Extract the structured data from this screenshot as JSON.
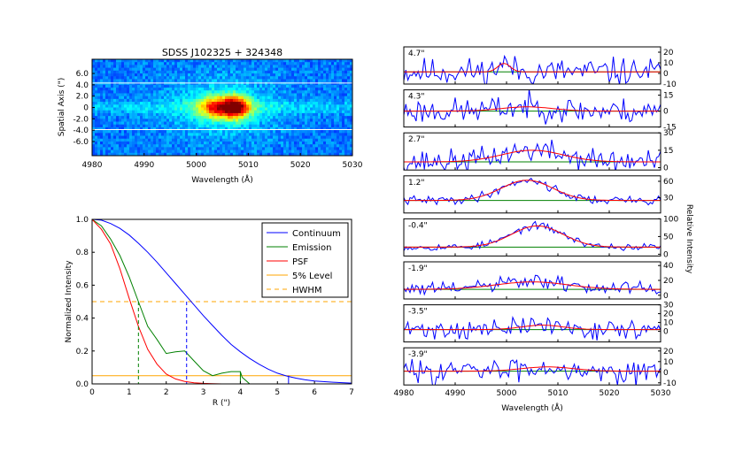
{
  "chart_data": [
    {
      "type": "heatmap",
      "title": "SDSS J102325 + 324348",
      "xlabel": "Wavelength (Å)",
      "ylabel": "Spatial Axis (\")",
      "xlim": [
        4980,
        5030
      ],
      "ylim": [
        -8.5,
        8.5
      ],
      "x_ticks": [
        "4980",
        "4990",
        "5000",
        "5010",
        "5020",
        "5030"
      ],
      "y_ticks": [
        "6.0",
        "4.0",
        "2.0",
        "0",
        "-2.0",
        "-4.0",
        "-6.0"
      ],
      "y_tick_values": [
        6,
        4,
        2,
        0,
        -2,
        -4,
        -6
      ],
      "x_tick_values": [
        4980,
        4990,
        5000,
        5010,
        5020,
        5030
      ],
      "white_lines_y": [
        4.3,
        -3.9
      ],
      "emission_center_x": 5005,
      "emission_width_x": 3,
      "colormap": "jet"
    },
    {
      "type": "line",
      "xlabel": "R (\")",
      "ylabel": "Normalized Intensity",
      "xlim": [
        0,
        7
      ],
      "ylim": [
        0,
        1.0
      ],
      "x_ticks": [
        "0",
        "1",
        "2",
        "3",
        "4",
        "5",
        "6",
        "7"
      ],
      "x_tick_values": [
        0,
        1,
        2,
        3,
        4,
        5,
        6,
        7
      ],
      "y_ticks": [
        "0.0",
        "0.2",
        "0.4",
        "0.6",
        "0.8",
        "1.0"
      ],
      "y_tick_values": [
        0.0,
        0.2,
        0.4,
        0.6,
        0.8,
        1.0
      ],
      "legend_position": "top-right",
      "series": [
        {
          "name": "Continuum",
          "color": "#0000ff",
          "style": "solid",
          "x": [
            0,
            0.25,
            0.5,
            0.75,
            1.0,
            1.25,
            1.5,
            1.75,
            2.0,
            2.25,
            2.5,
            2.75,
            3.0,
            3.25,
            3.5,
            3.75,
            4.0,
            4.25,
            4.5,
            4.75,
            5.0,
            5.25,
            5.5,
            5.75,
            6.0,
            6.5,
            7.0
          ],
          "y": [
            1.0,
            0.995,
            0.975,
            0.945,
            0.905,
            0.855,
            0.8,
            0.74,
            0.675,
            0.61,
            0.545,
            0.48,
            0.415,
            0.355,
            0.295,
            0.24,
            0.195,
            0.155,
            0.12,
            0.09,
            0.065,
            0.048,
            0.035,
            0.025,
            0.018,
            0.01,
            0.005
          ]
        },
        {
          "name": "Emission",
          "color": "#008000",
          "style": "solid",
          "x": [
            0,
            0.25,
            0.5,
            0.75,
            1.0,
            1.25,
            1.5,
            1.75,
            2.0,
            2.25,
            2.5,
            2.75,
            3.0,
            3.25,
            3.5,
            3.75,
            4.0,
            4.05,
            4.1,
            4.25
          ],
          "y": [
            1.0,
            0.96,
            0.88,
            0.78,
            0.65,
            0.5,
            0.35,
            0.27,
            0.185,
            0.195,
            0.2,
            0.14,
            0.08,
            0.05,
            0.065,
            0.075,
            0.075,
            0.04,
            0.03,
            0.0
          ]
        },
        {
          "name": "PSF",
          "color": "#ff0000",
          "style": "solid",
          "x": [
            0,
            0.25,
            0.5,
            0.75,
            1.0,
            1.25,
            1.5,
            1.75,
            2.0,
            2.25,
            2.5,
            2.75,
            3.0,
            3.25,
            3.5
          ],
          "y": [
            1.0,
            0.94,
            0.85,
            0.7,
            0.52,
            0.35,
            0.21,
            0.12,
            0.06,
            0.03,
            0.015,
            0.007,
            0.003,
            0.001,
            0.0
          ]
        },
        {
          "name": "5% Level",
          "color": "#ffa500",
          "style": "solid",
          "x": [
            0,
            7
          ],
          "y": [
            0.05,
            0.05
          ]
        },
        {
          "name": "HWHM",
          "color": "#ffa500",
          "style": "dashed",
          "x": [
            0,
            7
          ],
          "y": [
            0.5,
            0.5
          ]
        }
      ],
      "markers": [
        {
          "x": 1.25,
          "y": 0.5,
          "color": "#008000",
          "style": "dashed"
        },
        {
          "x": 2.55,
          "y": 0.5,
          "color": "#0000ff",
          "style": "dashed"
        },
        {
          "x": 4.0,
          "y": 0.075,
          "color": "#008000",
          "style": "solid"
        },
        {
          "x": 5.3,
          "y": 0.05,
          "color": "#0000ff",
          "style": "solid"
        }
      ]
    },
    {
      "type": "line",
      "xlabel": "Wavelength (Å)",
      "ylabel": "Relative Intensity",
      "xlim": [
        4980,
        5030
      ],
      "x_ticks": [
        "4980",
        "4990",
        "5000",
        "5010",
        "5020",
        "5030"
      ],
      "x_tick_values": [
        4980,
        4990,
        5000,
        5010,
        5020,
        5030
      ],
      "panels": [
        {
          "label": "4.7\"",
          "ylim": [
            -10,
            25
          ],
          "y_ticks": [
            "20",
            "10",
            "0",
            "-10"
          ],
          "y_tick_values": [
            20,
            10,
            0,
            -10
          ],
          "baseline": [
            1.5,
            0
          ],
          "gauss": {
            "amp": 8,
            "center": 4999.5,
            "sigma": 1.2
          },
          "noise": 6.5,
          "seed": 11
        },
        {
          "label": "4.3\"",
          "ylim": [
            -15,
            20
          ],
          "y_ticks": [
            "15",
            "0",
            "-15"
          ],
          "y_tick_values": [
            15,
            0,
            -15
          ],
          "baseline": [
            0,
            0
          ],
          "gauss": {
            "amp": 4,
            "center": 5004,
            "sigma": 5
          },
          "noise": 6,
          "seed": 23
        },
        {
          "label": "2.7\"",
          "ylim": [
            -2,
            30
          ],
          "y_ticks": [
            "30",
            "15",
            "0"
          ],
          "y_tick_values": [
            30,
            15,
            0
          ],
          "baseline": [
            5,
            0
          ],
          "gauss": {
            "amp": 10,
            "center": 5005,
            "sigma": 6
          },
          "noise": 5,
          "seed": 37
        },
        {
          "label": "1.2\"",
          "ylim": [
            2,
            70
          ],
          "y_ticks": [
            "60",
            "30"
          ],
          "y_tick_values": [
            60,
            30
          ],
          "baseline": [
            25,
            0
          ],
          "gauss": {
            "amp": 37,
            "center": 5004,
            "sigma": 5
          },
          "noise": 4,
          "seed": 41
        },
        {
          "label": "-0.4\"",
          "ylim": [
            -5,
            100
          ],
          "y_ticks": [
            "100",
            "50",
            "0"
          ],
          "y_tick_values": [
            100,
            50,
            0
          ],
          "baseline": [
            20,
            0
          ],
          "gauss": {
            "amp": 60,
            "center": 5006,
            "sigma": 5
          },
          "noise": 5,
          "seed": 53
        },
        {
          "label": "-1.9\"",
          "ylim": [
            -5,
            45
          ],
          "y_ticks": [
            "40",
            "20",
            "0"
          ],
          "y_tick_values": [
            40,
            20,
            0
          ],
          "baseline": [
            8,
            0
          ],
          "gauss": {
            "amp": 10,
            "center": 5005,
            "sigma": 7
          },
          "noise": 5,
          "seed": 61
        },
        {
          "label": "-3.5\"",
          "ylim": [
            -12,
            30
          ],
          "y_ticks": [
            "30",
            "20",
            "10",
            "0"
          ],
          "y_tick_values": [
            30,
            20,
            10,
            0
          ],
          "baseline": [
            2,
            0
          ],
          "gauss": {
            "amp": 5,
            "center": 5007,
            "sigma": 4
          },
          "noise": 5.5,
          "seed": 71
        },
        {
          "label": "-3.9\"",
          "ylim": [
            -12,
            23
          ],
          "y_ticks": [
            "20",
            "10",
            "0",
            "-10"
          ],
          "y_tick_values": [
            20,
            10,
            0,
            -10
          ],
          "baseline": [
            1,
            0
          ],
          "gauss": {
            "amp": 4,
            "center": 5008,
            "sigma": 5
          },
          "noise": 5.5,
          "seed": 83
        }
      ]
    }
  ]
}
